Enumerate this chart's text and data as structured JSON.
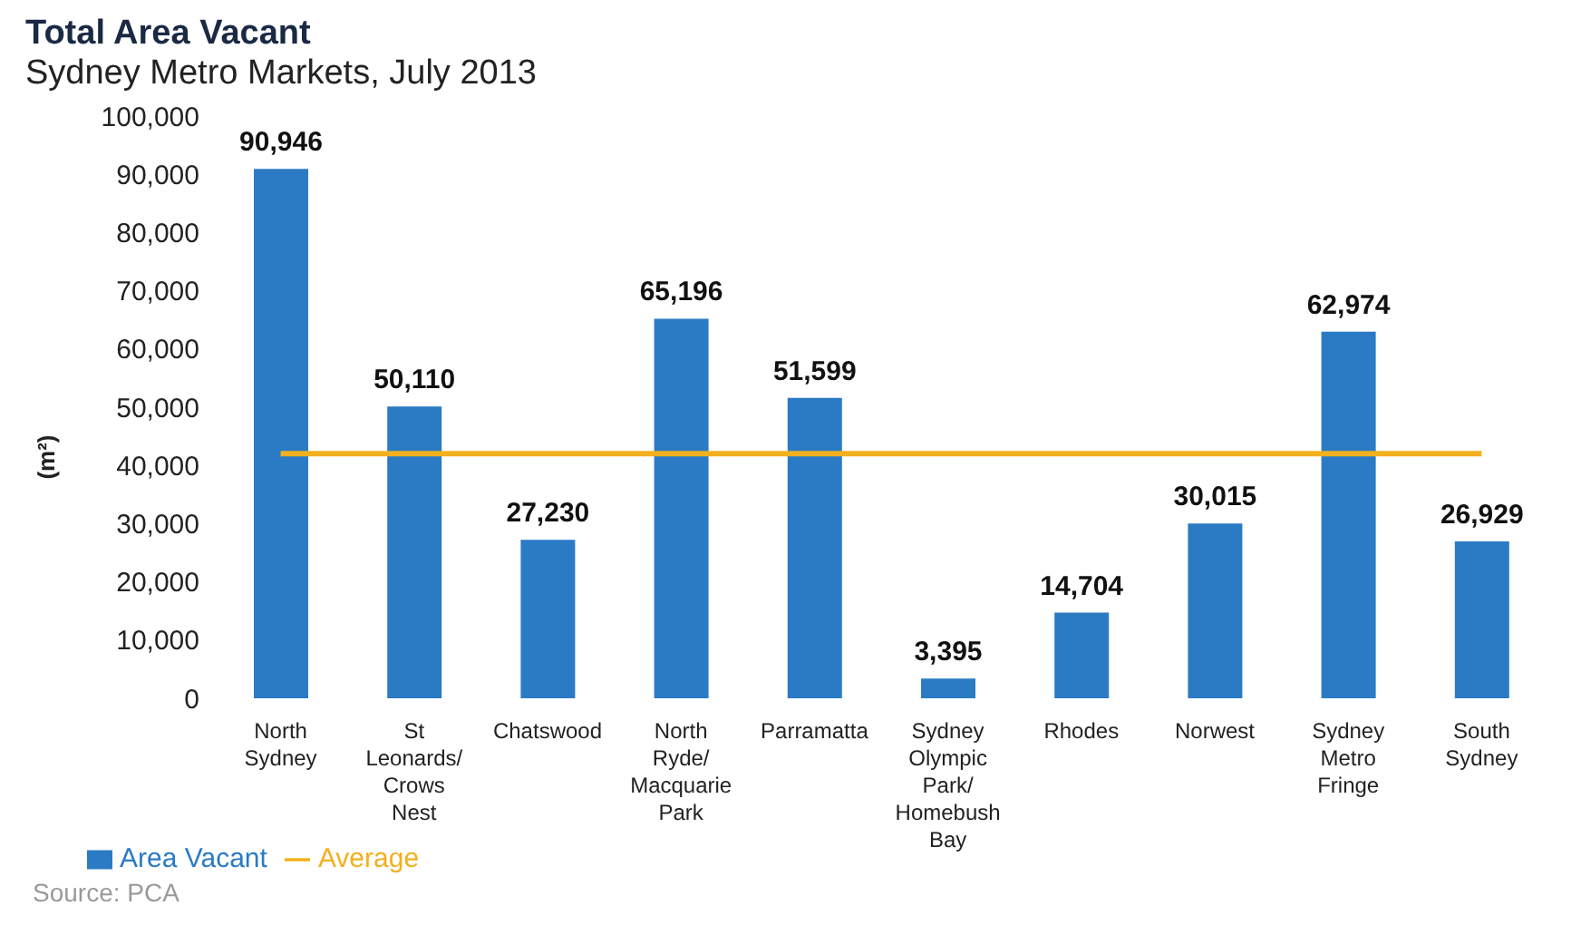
{
  "chart_data": {
    "type": "bar",
    "title": "Total Area Vacant",
    "subtitle": "Sydney Metro Markets, July 2013",
    "ylabel": "(m²)",
    "categories": [
      "North Sydney",
      "St Leonards/ Crows Nest",
      "Chatswood",
      "North Ryde/ Macquarie Park",
      "Parramatta",
      "Sydney Olympic Park/ Homebush Bay",
      "Rhodes",
      "Norwest",
      "Sydney Metro Fringe",
      "South Sydney"
    ],
    "series": [
      {
        "name": "Area Vacant",
        "color": "#2a7bc4",
        "values": [
          90946,
          50110,
          27230,
          65196,
          51599,
          3395,
          14704,
          30015,
          62974,
          26929
        ],
        "value_labels": [
          "90,946",
          "50,110",
          "27,230",
          "65,196",
          "51,599",
          "3,395",
          "14,704",
          "30,015",
          "62,974",
          "26,929"
        ]
      },
      {
        "name": "Average",
        "type": "line",
        "color": "#f2b01e",
        "values": [
          42000,
          42000,
          42000,
          42000,
          42000,
          42000,
          42000,
          42000,
          42000,
          42000
        ]
      }
    ],
    "ylim": [
      0,
      100000
    ],
    "yticks": [
      0,
      {
        "value": 10000,
        "label": "10,000"
      },
      {
        "value": 20000,
        "label": "20,000"
      },
      {
        "value": 30000,
        "label": "30,000"
      },
      {
        "value": 40000,
        "label": "40,000"
      },
      {
        "value": 50000,
        "label": "50,000"
      },
      {
        "value": 60000,
        "label": "60,000"
      },
      {
        "value": 70000,
        "label": "70,000"
      },
      {
        "value": 80000,
        "label": "80,000"
      },
      {
        "value": 90000,
        "label": "90,000"
      },
      {
        "value": 100000,
        "label": "100,000"
      }
    ],
    "grid": false,
    "legend": "bottom left",
    "marker": "none",
    "annotations": [
      "Source: PCA"
    ]
  }
}
